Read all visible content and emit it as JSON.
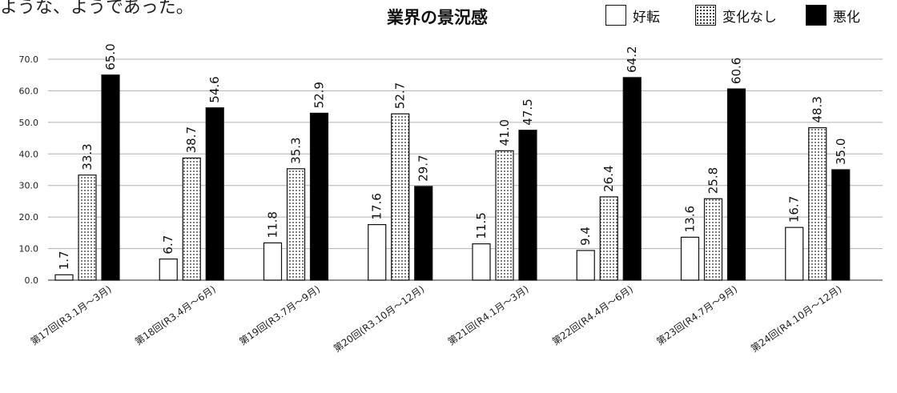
{
  "top_text": "ような、ようであった。",
  "chart_data": {
    "type": "bar",
    "title": "業界の景況感",
    "categories": [
      "第17回(R3.1月～3月)",
      "第18回(R3.4月～6月)",
      "第19回(R3.7月～9月)",
      "第20回(R3.10月～12月)",
      "第21回(R4.1月～3月)",
      "第22回(R4.4月～6月)",
      "第23回(R4.7月～9月)",
      "第24回(R4.10月～12月)"
    ],
    "series": [
      {
        "name": "好転",
        "pattern": "white",
        "values": [
          1.7,
          6.7,
          11.8,
          17.6,
          11.5,
          9.4,
          13.6,
          16.7
        ]
      },
      {
        "name": "変化なし",
        "pattern": "dots",
        "values": [
          33.3,
          38.7,
          35.3,
          52.7,
          41.0,
          26.4,
          25.8,
          48.3
        ]
      },
      {
        "name": "悪化",
        "pattern": "black",
        "values": [
          65.0,
          54.6,
          52.9,
          29.7,
          47.5,
          64.2,
          60.6,
          35.0
        ]
      }
    ],
    "yticks": [
      "0.0",
      "10.0",
      "20.0",
      "30.0",
      "40.0",
      "50.0",
      "60.0",
      "70.0"
    ],
    "ylim": [
      0,
      70
    ],
    "grid": true,
    "legend_position": "top-right",
    "colors": {
      "bar_edge": "#111111",
      "black_fill": "#000000",
      "grid": "#b0b0b0",
      "axis": "#555555"
    }
  }
}
